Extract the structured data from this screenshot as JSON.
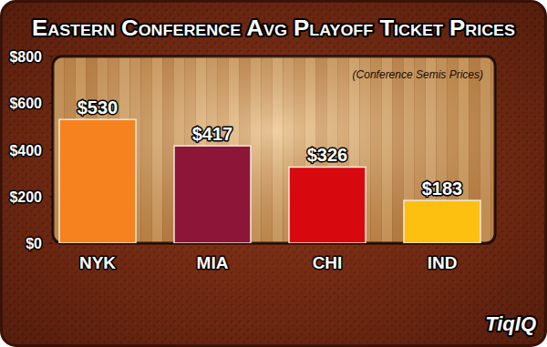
{
  "chart_data": {
    "type": "bar",
    "title": "Eastern Conference Avg Playoff Ticket Prices",
    "subtitle": "(Conference Semis Prices)",
    "annotations": [
      "TiqIQ"
    ],
    "categories": [
      "NYK",
      "MIA",
      "CHI",
      "IND"
    ],
    "values": [
      530,
      417,
      326,
      183
    ],
    "value_labels": [
      "$530",
      "$417",
      "$326",
      "$183"
    ],
    "colors": [
      "#f5821f",
      "#8c1538",
      "#d7090f",
      "#fdc010"
    ],
    "ylim": [
      0,
      800
    ],
    "yticks": [
      {
        "value": 0,
        "label": "$0"
      },
      {
        "value": 200,
        "label": "$200"
      },
      {
        "value": 400,
        "label": "$400"
      },
      {
        "value": 600,
        "label": "$600"
      },
      {
        "value": 800,
        "label": "$800"
      }
    ],
    "grid": false,
    "data_labels": true
  }
}
